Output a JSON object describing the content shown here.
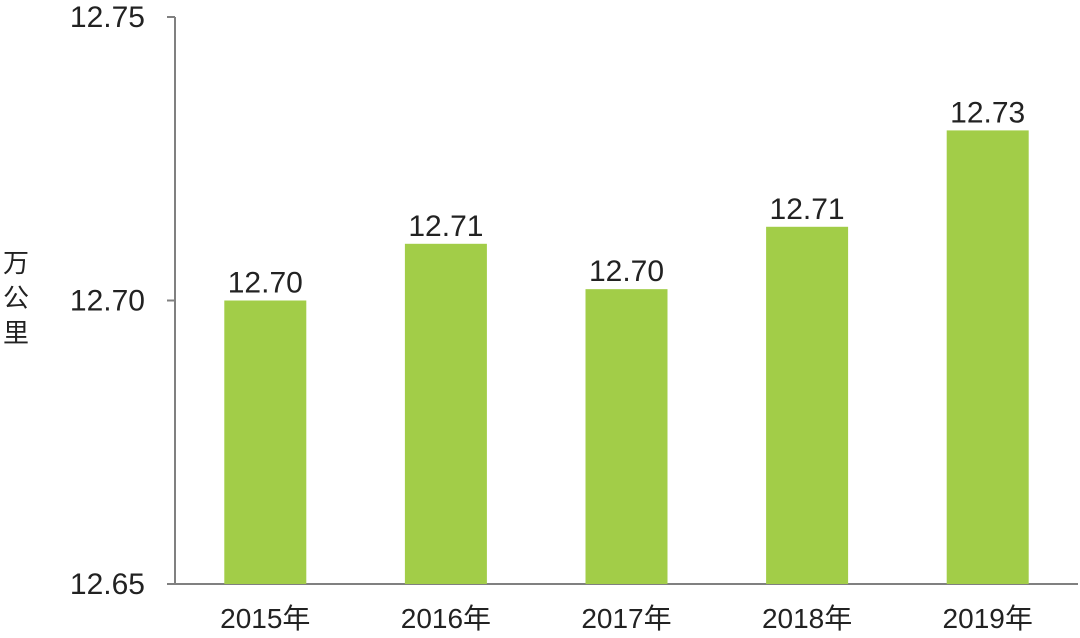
{
  "chart_data": {
    "type": "bar",
    "ylabel": "万公里",
    "categories": [
      "2015年",
      "2016年",
      "2017年",
      "2018年",
      "2019年"
    ],
    "values": [
      12.7,
      12.71,
      12.702,
      12.713,
      12.73
    ],
    "data_labels": [
      "12.70",
      "12.71",
      "12.70",
      "12.71",
      "12.73"
    ],
    "y_ticks": [
      "12.75",
      "12.70",
      "12.65"
    ],
    "ylim": [
      12.65,
      12.75
    ],
    "bar_color": "#a2cd48",
    "axis_color": "#808080",
    "grid": false
  }
}
